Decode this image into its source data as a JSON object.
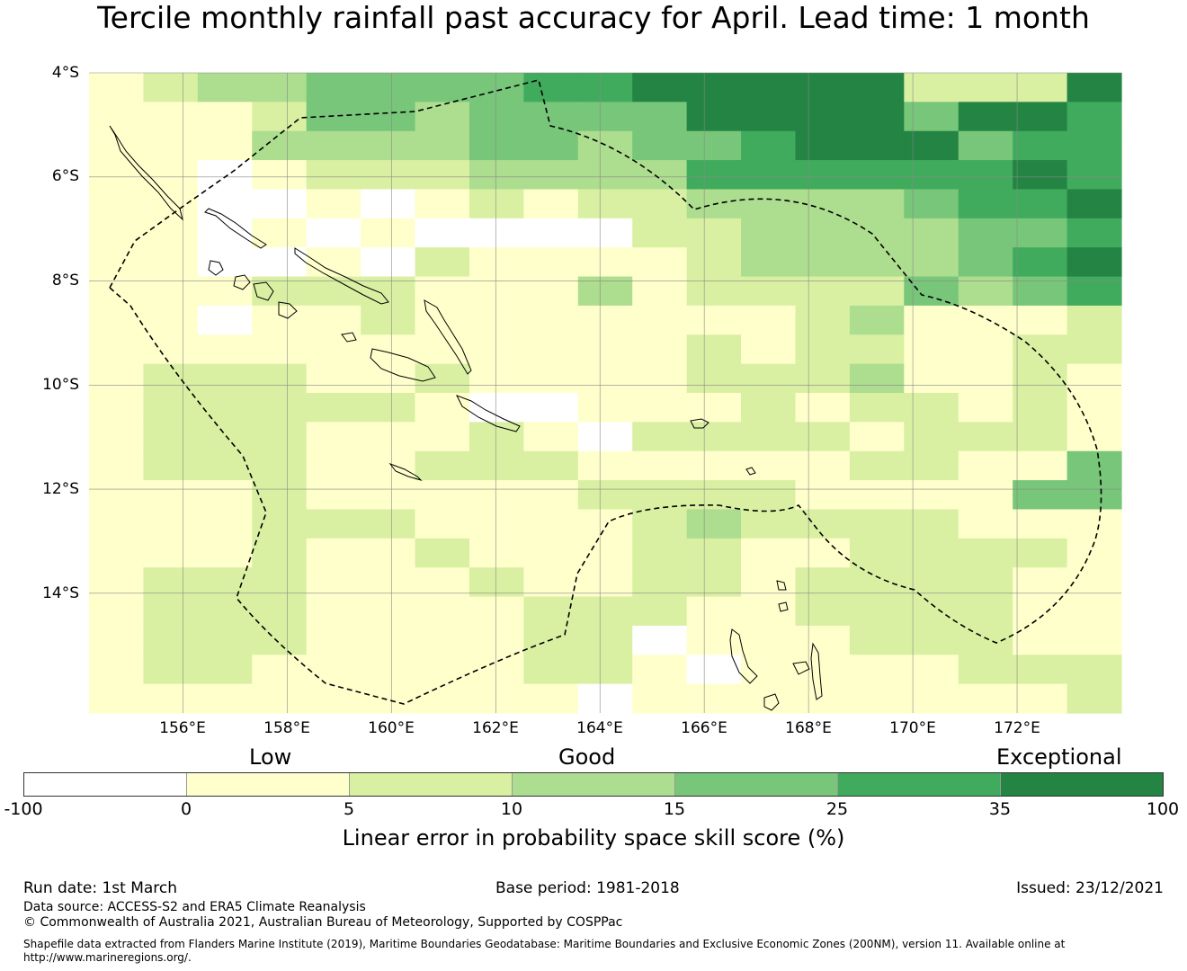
{
  "title": "Tercile monthly rainfall past accuracy for April. Lead time: 1 month",
  "map": {
    "lat_labels": [
      "4°S",
      "6°S",
      "8°S",
      "10°S",
      "12°S",
      "14°S"
    ],
    "lon_labels": [
      "156°E",
      "158°E",
      "160°E",
      "162°E",
      "164°E",
      "166°E",
      "168°E",
      "170°E",
      "172°E"
    ],
    "lon_range": [
      154.2,
      174.0
    ],
    "lat_range": [
      -4.0,
      -16.3
    ],
    "grid_rows": [
      "1233444455666662226",
      "1112443444466664665",
      "1113333443445666455",
      "1101222333355555565",
      "1100101212233334556",
      "1101010000223333445",
      "1100102111123333456",
      "1112221113122224345",
      "1101121111111231112",
      "1111111111121221122",
      "1222112111122231121",
      "1222221001112122121",
      "1222111210222212221",
      "1222112221111122114",
      "1112111112222111144",
      "1112221111232222111",
      "1112112111221122221",
      "1222111211221222211",
      "1222111122211222211",
      "1222111122011122211",
      "1221111122101111222",
      "1111111110111111112"
    ]
  },
  "category_labels": {
    "low": "Low",
    "good": "Good",
    "exceptional": "Exceptional"
  },
  "colorbar": {
    "colors": [
      "#ffffff",
      "#ffffcc",
      "#d9f0a3",
      "#addd8e",
      "#78c679",
      "#41ab5d",
      "#238443"
    ],
    "ticks": [
      "-100",
      "0",
      "5",
      "10",
      "15",
      "25",
      "35",
      "100"
    ],
    "title": "Linear error in probability space skill score (%)"
  },
  "footer": {
    "run_date": "Run date: 1st March",
    "base_period": "Base period: 1981-2018",
    "issued": "Issued: 23/12/2021",
    "data_source": "Data source: ACCESS-S2 and ERA5 Climate Reanalysis",
    "copyright": "© Commonwealth of Australia 2021, Australian Bureau of Meteorology, Supported by COSPPac",
    "shapefile": "Shapefile data extracted from Flanders Marine Institute (2019), Maritime Boundaries Geodatabase: Maritime Boundaries and Exclusive Economic Zones (200NM), version 11. Available online at http://www.marineregions.org/."
  }
}
